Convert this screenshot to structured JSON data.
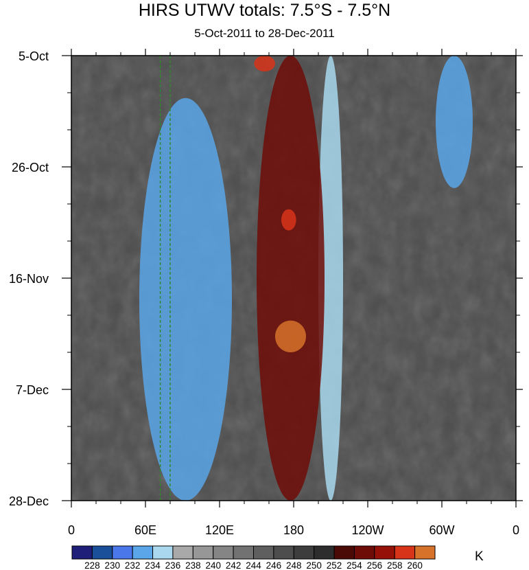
{
  "chart_data": {
    "type": "heatmap",
    "title": "HIRS UTWV totals: 7.5°S - 7.5°N",
    "subtitle": "5-Oct-2011 to 28-Dec-2011",
    "x_ticks": [
      "0",
      "60E",
      "120E",
      "180",
      "120W",
      "60W",
      "0"
    ],
    "x_tick_values": [
      0,
      60,
      120,
      180,
      240,
      300,
      360
    ],
    "xlim": [
      0,
      360
    ],
    "y_ticks": [
      "5-Oct",
      "26-Oct",
      "16-Nov",
      "7-Dec",
      "28-Dec"
    ],
    "y_tick_days": [
      0,
      21,
      42,
      63,
      84
    ],
    "ylim_days": [
      0,
      84
    ],
    "y_direction": "time increasing downward",
    "colorbar": {
      "unit": "K",
      "levels": [
        228,
        230,
        232,
        234,
        236,
        238,
        240,
        242,
        244,
        246,
        248,
        250,
        252,
        254,
        256,
        258,
        260
      ],
      "colors": [
        "#1f1f7a",
        "#1a4f99",
        "#4a78ea",
        "#5aa6e8",
        "#a9d8ef",
        "#a9a9a9",
        "#979797",
        "#858585",
        "#727272",
        "#5f5f5f",
        "#4d4d4d",
        "#3d3d3d",
        "#2d2d2d",
        "#4b0a06",
        "#6e0d08",
        "#961209",
        "#d8341a",
        "#d6722a"
      ]
    },
    "reference_lines_lon": [
      72,
      80
    ],
    "reference_line_color": "#2e8b2e",
    "features": [
      {
        "kind": "moist band",
        "lon_range": [
          200,
          220
        ],
        "day_range": [
          0,
          84
        ],
        "value_K": 235
      },
      {
        "kind": "moist band",
        "lon_range": [
          55,
          130
        ],
        "day_range": [
          8,
          84
        ],
        "value_K": 233
      },
      {
        "kind": "dry band",
        "lon_range": [
          150,
          205
        ],
        "day_range": [
          0,
          84
        ],
        "value_K": 255
      },
      {
        "kind": "dry patch",
        "lon_range": [
          148,
          165
        ],
        "day_range": [
          0,
          3
        ],
        "value_K": 259
      },
      {
        "kind": "dry patch",
        "lon_range": [
          170,
          182
        ],
        "day_range": [
          29,
          33
        ],
        "value_K": 259
      },
      {
        "kind": "dry patch",
        "lon_range": [
          165,
          190
        ],
        "day_range": [
          50,
          56
        ],
        "value_K": 260
      },
      {
        "kind": "moist band",
        "lon_range": [
          295,
          325
        ],
        "day_range": [
          0,
          25
        ],
        "value_K": 233
      }
    ]
  }
}
